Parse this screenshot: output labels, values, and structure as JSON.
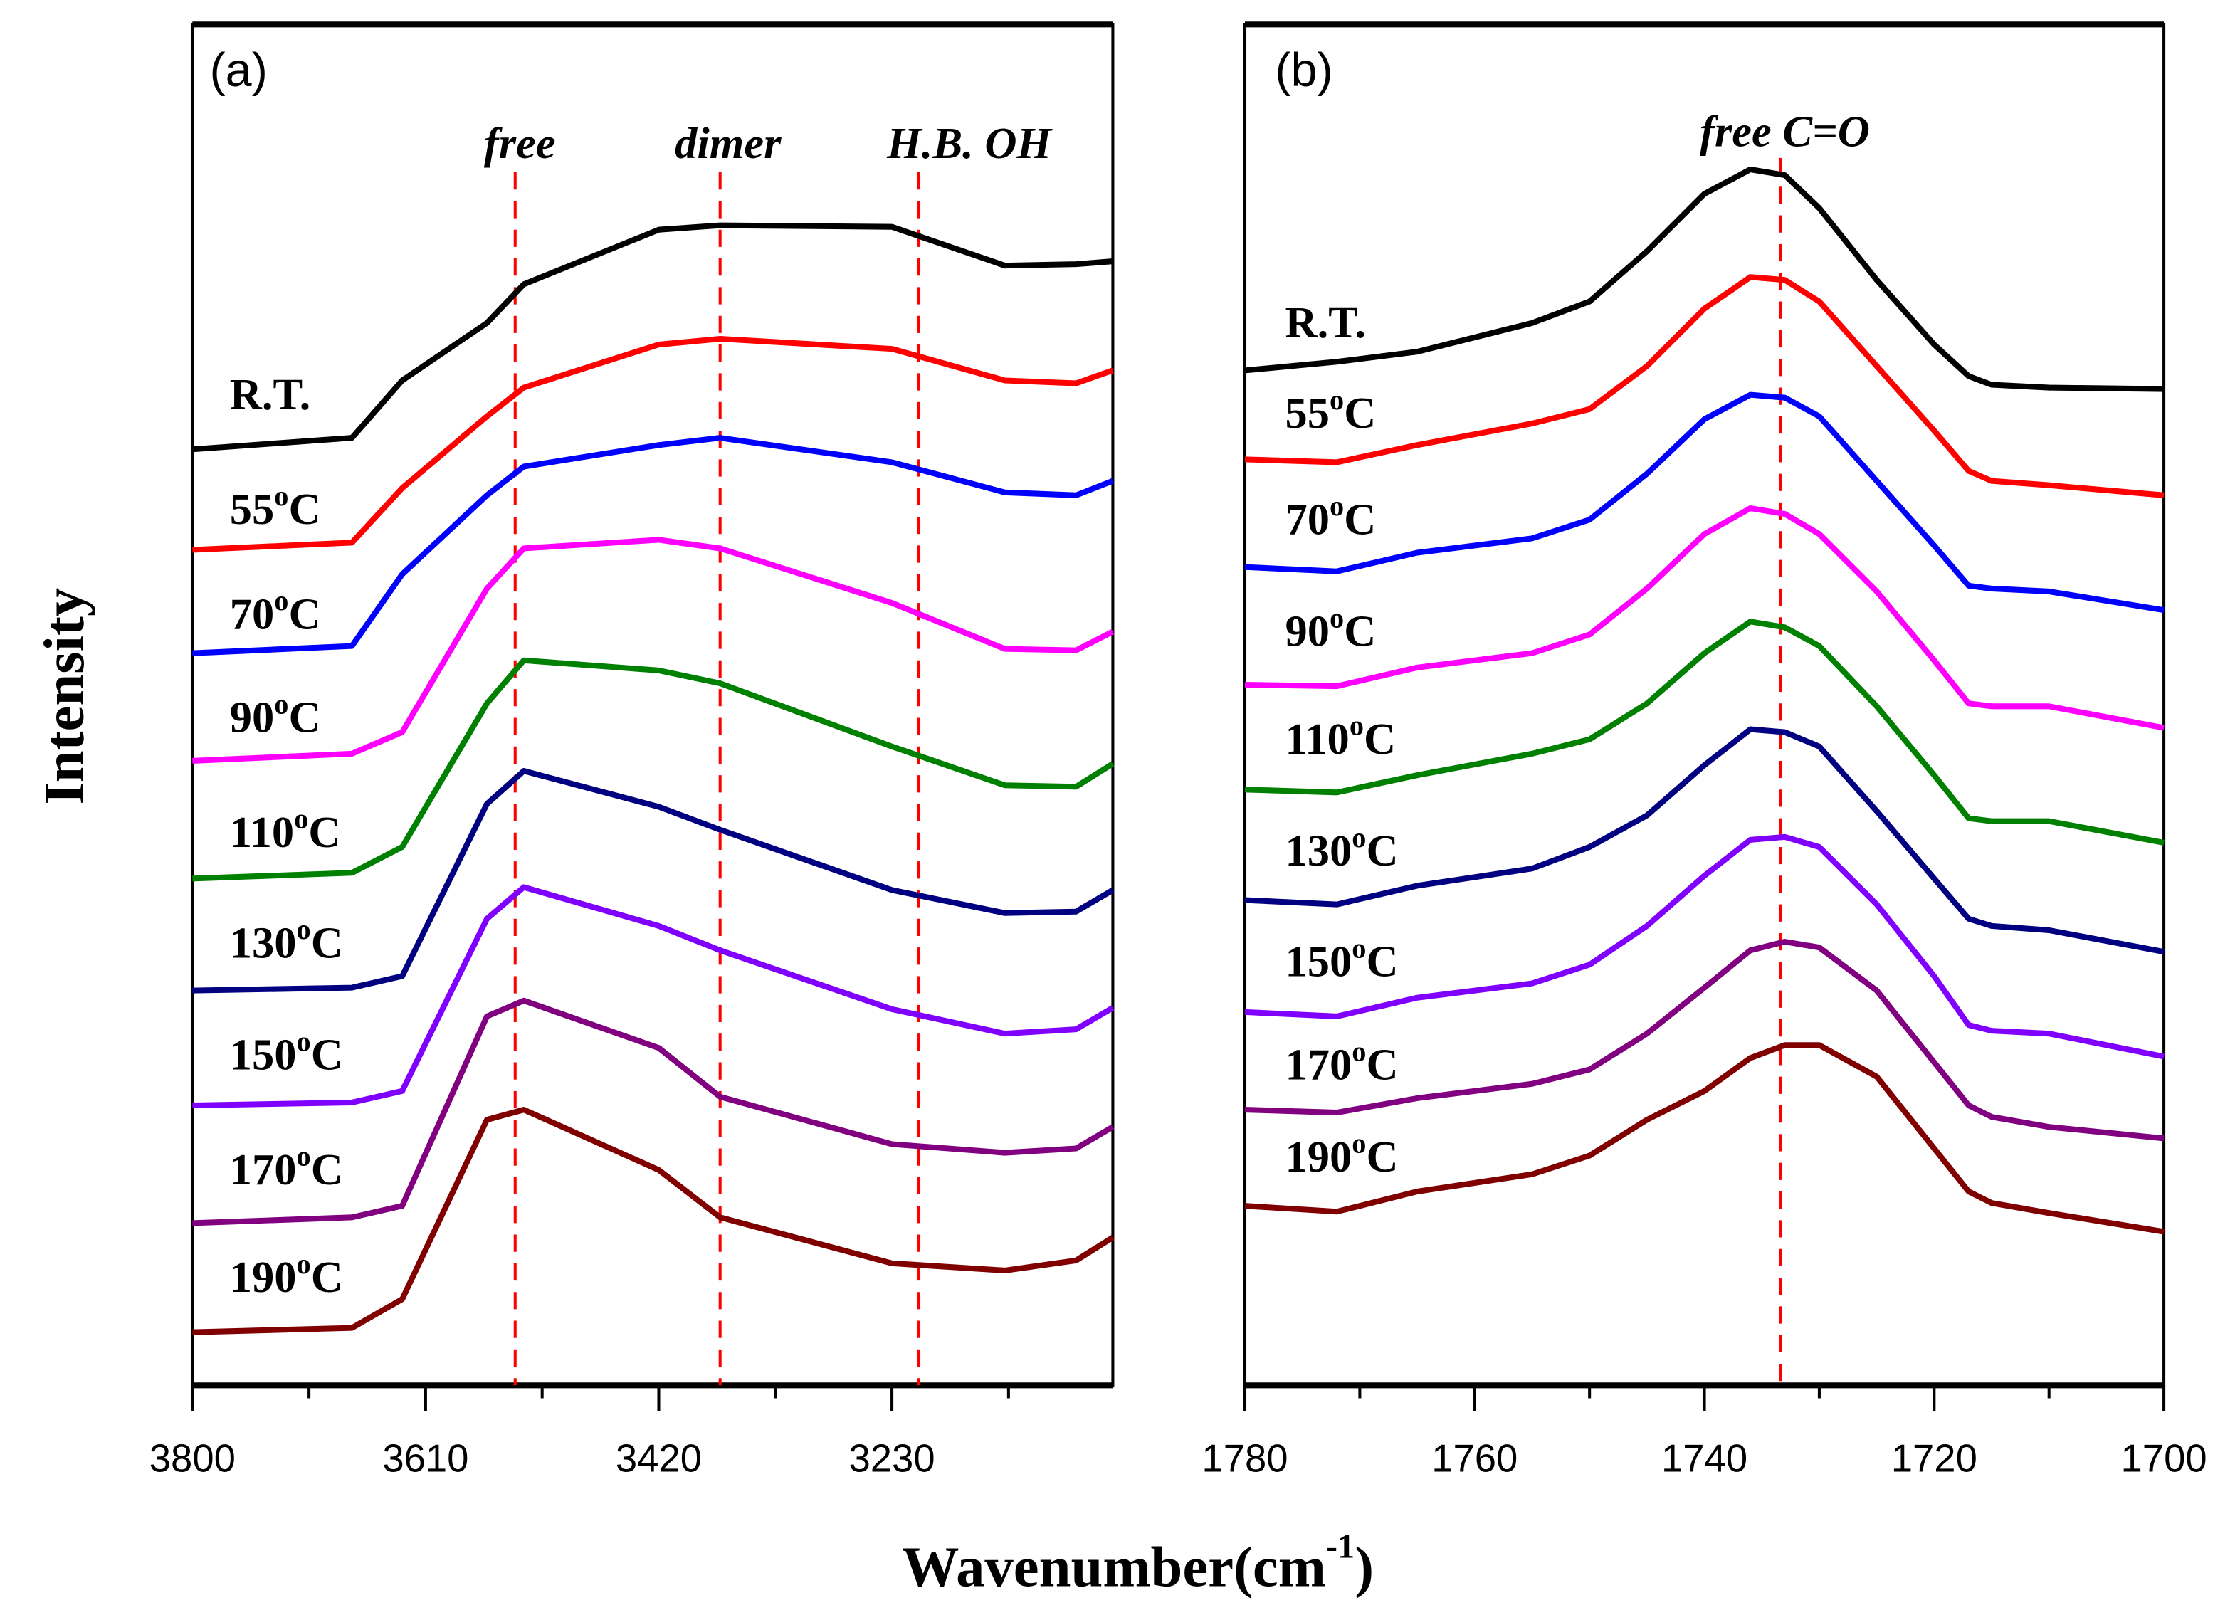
{
  "chart_data": [
    {
      "type": "line",
      "panel_label": "(a)",
      "xlabel": "Wavenumber(cm-1)",
      "ylabel": "Intensity",
      "xlim": [
        3800,
        3050
      ],
      "ylim": [
        0,
        94.8
      ],
      "xticks": [
        3800,
        3610,
        3420,
        3230
      ],
      "xticks_minor": [
        3705,
        3515,
        3325,
        3135
      ],
      "xtick_labels": [
        "3800",
        "3610",
        "3420",
        "3230"
      ],
      "annotations": [
        {
          "text": "free",
          "x": 3537
        },
        {
          "text": "dimer",
          "x": 3370
        },
        {
          "text": "H.B. OH",
          "x": 3208
        }
      ],
      "x": [
        3800,
        3670,
        3629,
        3560,
        3530,
        3420,
        3370,
        3230,
        3138,
        3080,
        3050
      ],
      "series": [
        {
          "name": "R.T.",
          "label": "R.T.",
          "sup": "",
          "unit": "",
          "color": "#000000",
          "values": [
            65.2,
            66.0,
            70.0,
            74.0,
            76.7,
            80.5,
            80.8,
            80.7,
            78.0,
            78.1,
            78.3
          ]
        },
        {
          "name": "55°C",
          "label": "55",
          "sup": "o",
          "unit": "C",
          "color": "#ff0000",
          "values": [
            58.2,
            58.7,
            62.5,
            67.5,
            69.5,
            72.5,
            72.9,
            72.2,
            70.0,
            69.8,
            70.7
          ]
        },
        {
          "name": "70°C",
          "label": "70",
          "sup": "o",
          "unit": "C",
          "color": "#0000ff",
          "values": [
            51.0,
            51.5,
            56.5,
            62.0,
            64.0,
            65.5,
            66.0,
            64.3,
            62.2,
            62.0,
            63.0
          ]
        },
        {
          "name": "90°C",
          "label": "90",
          "sup": "o",
          "unit": "C",
          "color": "#ff00ff",
          "values": [
            43.5,
            44.0,
            45.5,
            55.5,
            58.3,
            58.9,
            58.3,
            54.5,
            51.3,
            51.2,
            52.5
          ]
        },
        {
          "name": "110°C",
          "label": "110",
          "sup": "o",
          "unit": "C",
          "color": "#008000",
          "values": [
            35.3,
            35.7,
            37.5,
            47.5,
            50.5,
            49.8,
            48.9,
            44.5,
            41.8,
            41.7,
            43.3
          ]
        },
        {
          "name": "130°C",
          "label": "130",
          "sup": "o",
          "unit": "C",
          "color": "#000080",
          "values": [
            27.5,
            27.7,
            28.5,
            40.5,
            42.8,
            40.3,
            38.7,
            34.5,
            32.9,
            33.0,
            34.5
          ]
        },
        {
          "name": "150°C",
          "label": "150",
          "sup": "o",
          "unit": "C",
          "color": "#8000ff",
          "values": [
            19.5,
            19.7,
            20.5,
            32.5,
            34.7,
            32.0,
            30.3,
            26.2,
            24.5,
            24.8,
            26.3
          ]
        },
        {
          "name": "170°C",
          "label": "170",
          "sup": "o",
          "unit": "C",
          "color": "#800080",
          "values": [
            11.3,
            11.7,
            12.5,
            25.7,
            26.8,
            23.5,
            20.1,
            16.8,
            16.2,
            16.5,
            18.0
          ]
        },
        {
          "name": "190°C",
          "label": "190",
          "sup": "o",
          "unit": "C",
          "color": "#800000",
          "values": [
            3.7,
            4.0,
            6.0,
            18.5,
            19.2,
            15.0,
            11.7,
            8.5,
            8.0,
            8.7,
            10.3
          ]
        }
      ]
    },
    {
      "type": "line",
      "panel_label": "(b)",
      "xlabel": "Wavenumber(cm-1)",
      "ylabel": "Intensity",
      "xlim": [
        1780,
        1700
      ],
      "ylim": [
        0,
        94.8
      ],
      "xticks": [
        1780,
        1760,
        1740,
        1720,
        1700
      ],
      "xticks_minor": [
        1770,
        1750,
        1730,
        1710
      ],
      "xtick_labels": [
        "1780",
        "1760",
        "1740",
        "1720",
        "1700"
      ],
      "annotations": [
        {
          "text": "free C=O",
          "x": 1733.4
        }
      ],
      "x": [
        1780,
        1772,
        1765,
        1755,
        1750,
        1745,
        1740,
        1736,
        1733,
        1730,
        1725,
        1720,
        1717,
        1715,
        1710,
        1700
      ],
      "series": [
        {
          "name": "R.T.",
          "label": "R.T.",
          "sup": "",
          "unit": "",
          "color": "#000000",
          "values": [
            70.7,
            71.3,
            72.0,
            74.0,
            75.5,
            79.0,
            83.0,
            84.7,
            84.3,
            82.0,
            77.0,
            72.5,
            70.3,
            69.7,
            69.5,
            69.4
          ]
        },
        {
          "name": "55°C",
          "label": "55",
          "sup": "o",
          "unit": "C",
          "color": "#ff0000",
          "values": [
            64.5,
            64.3,
            65.5,
            67.0,
            68.0,
            71.0,
            75.0,
            77.2,
            77.0,
            75.5,
            71.0,
            66.5,
            63.7,
            63.0,
            62.7,
            62.0
          ]
        },
        {
          "name": "70°C",
          "label": "70",
          "sup": "o",
          "unit": "C",
          "color": "#0000ff",
          "values": [
            57.0,
            56.7,
            58.0,
            59.0,
            60.3,
            63.5,
            67.3,
            69.0,
            68.8,
            67.5,
            63.0,
            58.5,
            55.7,
            55.5,
            55.3,
            54.0
          ]
        },
        {
          "name": "90°C",
          "label": "90",
          "sup": "o",
          "unit": "C",
          "color": "#ff00ff",
          "values": [
            48.8,
            48.7,
            50.0,
            51.0,
            52.3,
            55.5,
            59.3,
            61.1,
            60.7,
            59.3,
            55.3,
            50.5,
            47.5,
            47.3,
            47.3,
            45.8
          ]
        },
        {
          "name": "110°C",
          "label": "110",
          "sup": "o",
          "unit": "C",
          "color": "#008000",
          "values": [
            41.5,
            41.3,
            42.5,
            44.0,
            45.0,
            47.5,
            51.0,
            53.2,
            52.8,
            51.5,
            47.3,
            42.5,
            39.5,
            39.3,
            39.3,
            37.8
          ]
        },
        {
          "name": "130°C",
          "label": "130",
          "sup": "o",
          "unit": "C",
          "color": "#000080",
          "values": [
            33.8,
            33.5,
            34.8,
            36.0,
            37.5,
            39.7,
            43.2,
            45.7,
            45.5,
            44.5,
            40.0,
            35.3,
            32.5,
            32.0,
            31.7,
            30.2
          ]
        },
        {
          "name": "150°C",
          "label": "150",
          "sup": "o",
          "unit": "C",
          "color": "#8000ff",
          "values": [
            26.0,
            25.7,
            27.0,
            28.0,
            29.3,
            32.0,
            35.5,
            38.0,
            38.2,
            37.5,
            33.5,
            28.5,
            25.1,
            24.7,
            24.5,
            22.9
          ]
        },
        {
          "name": "170°C",
          "label": "170",
          "sup": "o",
          "unit": "C",
          "color": "#800080",
          "values": [
            19.2,
            19.0,
            20.0,
            21.0,
            22.0,
            24.5,
            27.7,
            30.3,
            30.9,
            30.5,
            27.5,
            22.5,
            19.5,
            18.7,
            18.0,
            17.2
          ]
        },
        {
          "name": "190°C",
          "label": "190",
          "sup": "o",
          "unit": "C",
          "color": "#800000",
          "values": [
            12.5,
            12.1,
            13.5,
            14.7,
            16.0,
            18.5,
            20.5,
            22.8,
            23.7,
            23.7,
            21.5,
            16.5,
            13.5,
            12.7,
            12.0,
            10.7
          ]
        }
      ]
    }
  ],
  "axis_titles": {
    "x_main": "Wavenumber(cm",
    "x_sup": "-1",
    "x_close": ")",
    "y": "Intensity"
  },
  "colors": {
    "dashed_line": "#ff0000",
    "axis": "#000000"
  }
}
